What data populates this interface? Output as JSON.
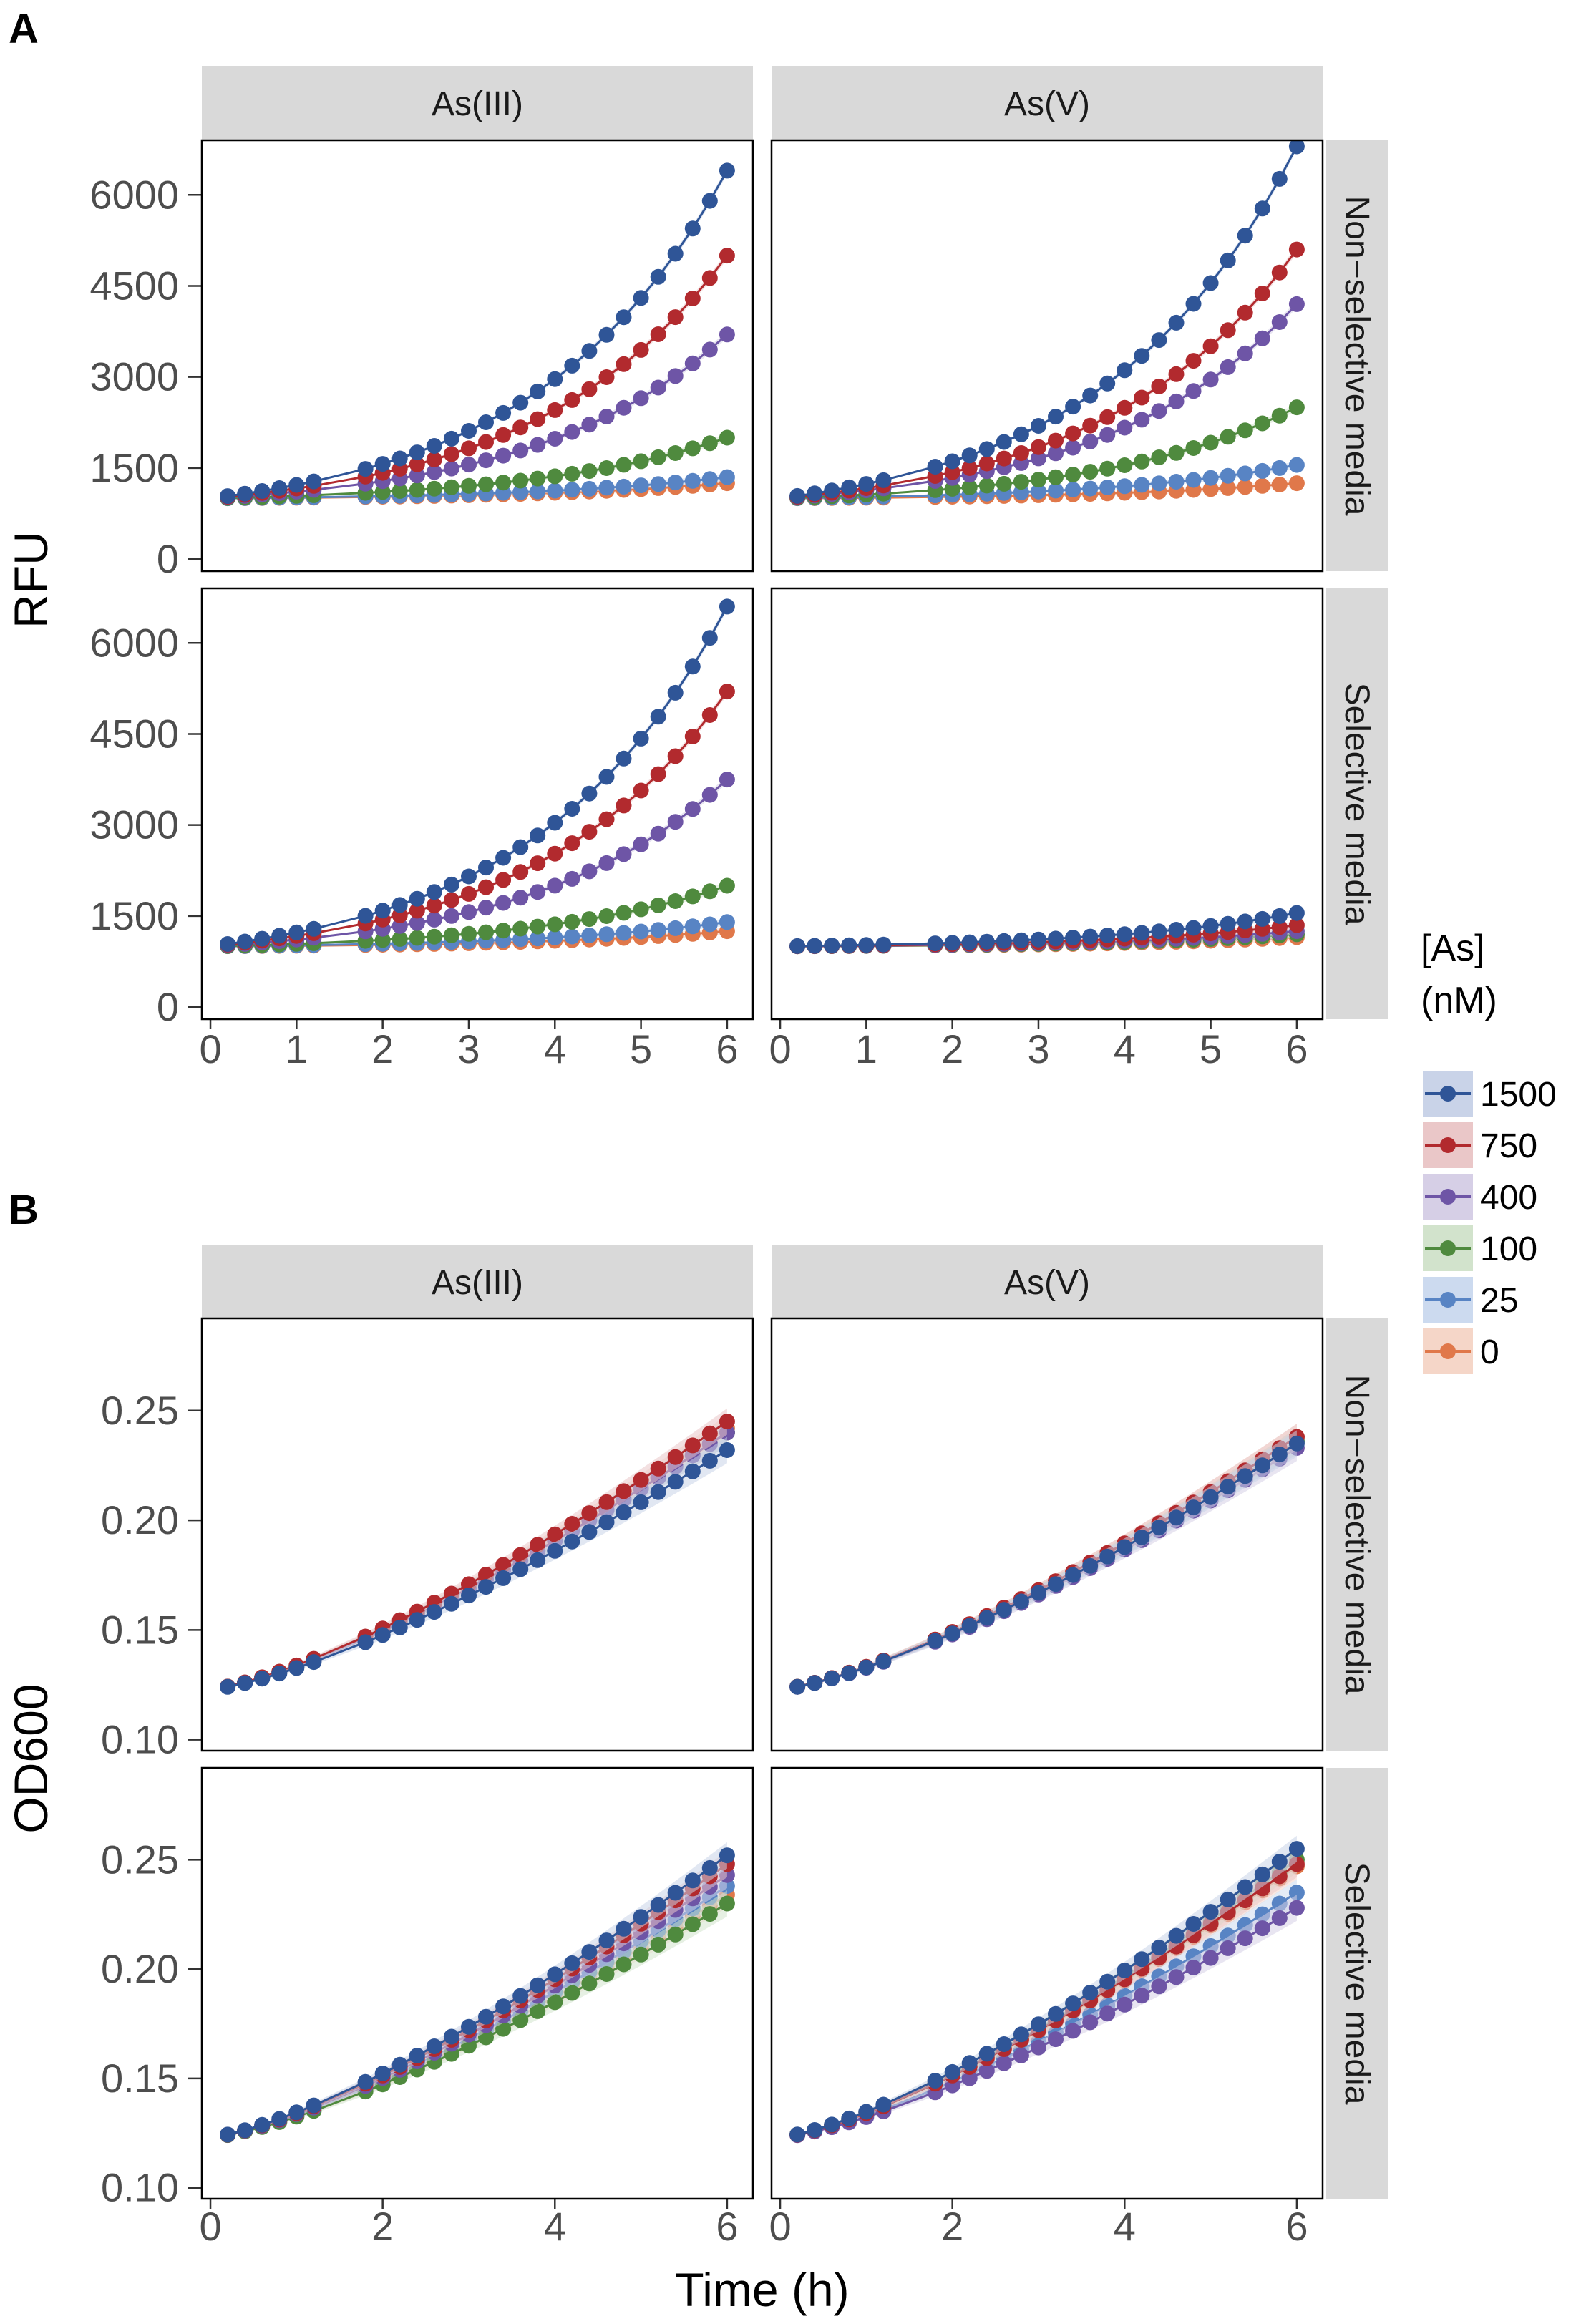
{
  "chart_data": {
    "type": "line",
    "panels": [
      {
        "letter": "A",
        "ylabel": "RFU",
        "yticks": [
          0,
          1500,
          3000,
          4500,
          6000
        ],
        "ylim": [
          -200,
          6900
        ]
      },
      {
        "letter": "B",
        "ylabel": "OD600",
        "yticks": [
          0.1,
          0.15,
          0.2,
          0.25
        ],
        "ytick_labels": [
          "0.10",
          "0.15",
          "0.20",
          "0.25"
        ],
        "ylim": [
          0.095,
          0.292
        ]
      }
    ],
    "facet_columns": [
      "As(III)",
      "As(V)"
    ],
    "facet_rows": [
      "Non−selective media",
      "Selective media"
    ],
    "xlabel": "Time (h)",
    "xlim": [
      -0.1,
      6.3
    ],
    "xticks_A": [
      0,
      1,
      2,
      3,
      4,
      5,
      6
    ],
    "xticks_B": [
      0,
      2,
      4,
      6
    ],
    "legend": {
      "title_line1": "[As]",
      "title_line2": "(nM)",
      "entries": [
        {
          "label": "1500",
          "color": "#2f5597",
          "band": "#c9d3e8"
        },
        {
          "label": "750",
          "color": "#b22a2e",
          "band": "#eac7c8"
        },
        {
          "label": "400",
          "color": "#6e55a6",
          "band": "#d6cfe6"
        },
        {
          "label": "100",
          "color": "#4f8a3e",
          "band": "#d2e3cc"
        },
        {
          "label": "25",
          "color": "#5884c4",
          "band": "#ccdaef"
        },
        {
          "label": "0",
          "color": "#e0784a",
          "band": "#f5d6c8"
        }
      ]
    },
    "rfu_end_values": {
      "AsIII_nonselective": {
        "1500": 6400,
        "750": 5000,
        "400": 3700,
        "100": 2000,
        "25": 1350,
        "0": 1250
      },
      "AsV_nonselective": {
        "1500": 6800,
        "750": 5100,
        "400": 4200,
        "100": 2500,
        "25": 1550,
        "0": 1250
      },
      "AsIII_selective": {
        "1500": 6600,
        "750": 5200,
        "400": 3750,
        "100": 2000,
        "25": 1400,
        "0": 1250
      },
      "AsV_selective": {
        "1500": 1550,
        "750": 1350,
        "400": 1250,
        "100": 1200,
        "25": 1200,
        "0": 1150
      },
      "start_value": 1000
    },
    "od600_end_values": {
      "AsIII_nonselective": {
        "1500": 0.232,
        "750": 0.245,
        "400": 0.24,
        "100": 0.24,
        "25": 0.24,
        "0": 0.242
      },
      "AsV_nonselective": {
        "1500": 0.235,
        "750": 0.238,
        "400": 0.233,
        "100": 0.236,
        "25": 0.236,
        "0": 0.238
      },
      "AsIII_selective": {
        "1500": 0.252,
        "750": 0.248,
        "400": 0.243,
        "100": 0.23,
        "25": 0.238,
        "0": 0.234
      },
      "AsV_selective": {
        "1500": 0.255,
        "750": 0.248,
        "400": 0.228,
        "100": 0.25,
        "25": 0.235,
        "0": 0.247
      },
      "start_value": 0.123
    }
  }
}
